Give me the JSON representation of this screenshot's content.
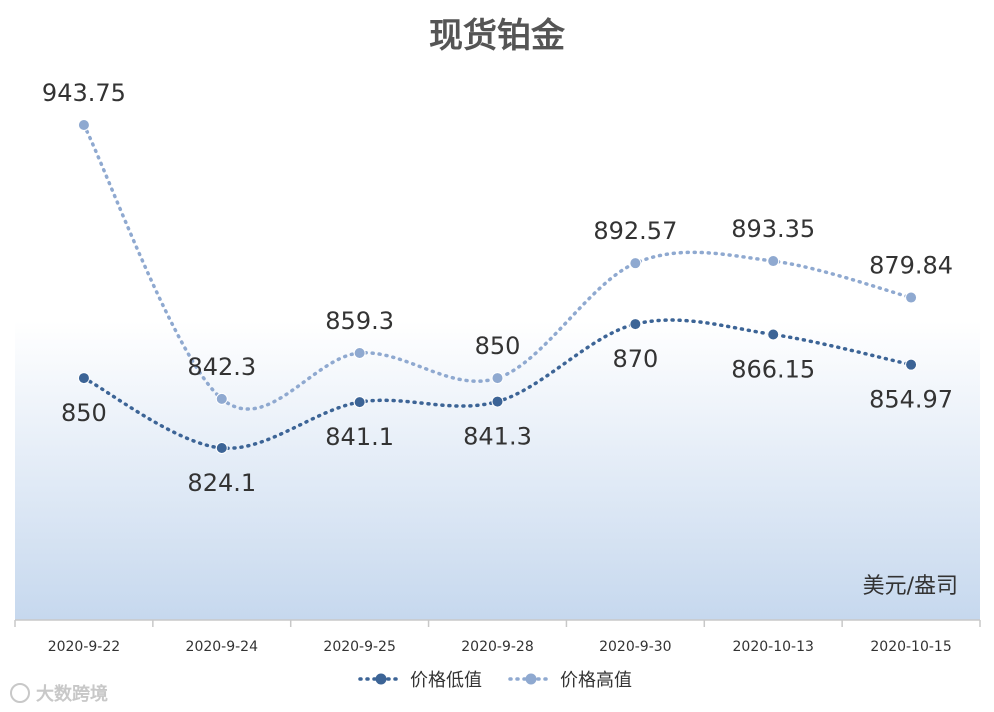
{
  "chart_data": {
    "type": "line",
    "title": "现货铂金",
    "unit_label": "美元/盎司",
    "categories": [
      "2020-9-22",
      "2020-9-24",
      "2020-9-25",
      "2020-9-28",
      "2020-9-30",
      "2020-10-13",
      "2020-10-15"
    ],
    "series": [
      {
        "name": "价格低值",
        "values": [
          850,
          824.1,
          841.1,
          841.3,
          870,
          866.15,
          854.97
        ],
        "labels": [
          "850",
          "824.1",
          "841.1",
          "841.3",
          "870",
          "866.15",
          "854.97"
        ],
        "color": "#3c6496"
      },
      {
        "name": "价格高值",
        "values": [
          943.75,
          842.3,
          859.3,
          850,
          892.57,
          893.35,
          879.84
        ],
        "labels": [
          "943.75",
          "842.3",
          "859.3",
          "850",
          "892.57",
          "893.35",
          "879.84"
        ],
        "color": "#8fa9d0"
      }
    ],
    "grid": false,
    "legend_position": "bottom",
    "high_low_lines": true
  },
  "watermark": "大数跨境"
}
